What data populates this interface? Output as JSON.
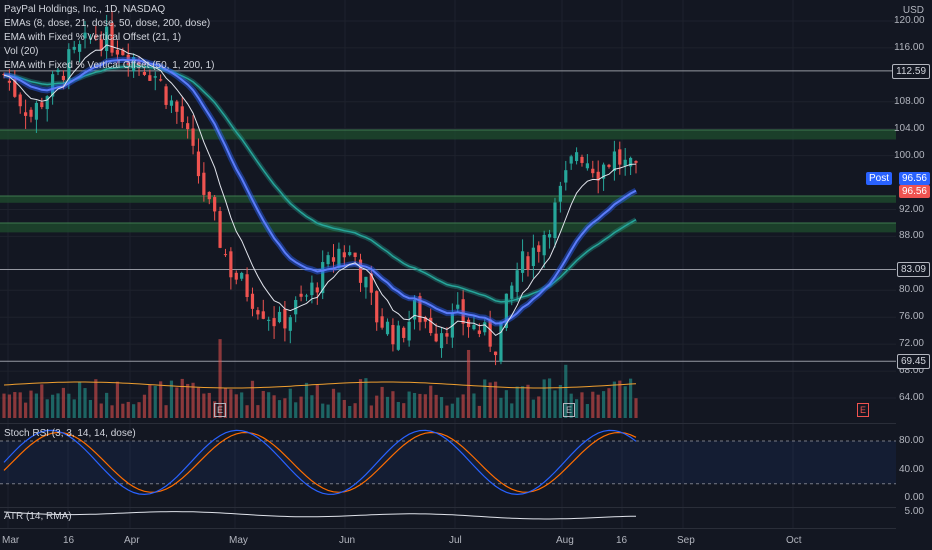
{
  "legends": {
    "title": "PayPal Holdings, Inc., 1D, NASDAQ",
    "emas": "EMAs (8, dose, 21, dose, 50, dose, 200, dose)",
    "ema_offset_21": "EMA with Fixed % Vertical Offset (21, 1)",
    "vol": "Vol (20)",
    "ema_offset_50": "EMA with Fixed % Vertical Offset (50, 1, 200, 1)",
    "stoch": "Stoch RSI (3, 3, 14, 14, dose)",
    "atr": "ATR (14, RMA)"
  },
  "price_axis": {
    "currency": "USD",
    "ticks": [
      "120.00",
      "116.00",
      "108.00",
      "104.00",
      "100.00",
      "92.00",
      "88.00",
      "80.00",
      "76.00",
      "72.00",
      "68.00",
      "64.00"
    ],
    "tick_values": [
      120,
      116,
      108,
      104,
      100,
      92,
      88,
      80,
      76,
      72,
      68,
      64
    ]
  },
  "stoch_axis": {
    "ticks": [
      "80.00",
      "40.00",
      "0.00"
    ],
    "tick_values": [
      80,
      40,
      0
    ]
  },
  "atr_axis": {
    "ticks": [
      "5.00"
    ]
  },
  "tags": {
    "r1": {
      "text": "112.59",
      "value": 112.59
    },
    "post_label": "Post",
    "post": {
      "text": "96.56",
      "value": 96.56
    },
    "last": {
      "text": "96.56",
      "value": 96.56
    },
    "r2": {
      "text": "83.09",
      "value": 83.09
    },
    "r3": {
      "text": "69.45",
      "value": 69.45
    }
  },
  "x_axis": [
    "Mar",
    "16",
    "Apr",
    "May",
    "Jun",
    "Jul",
    "Aug",
    "16",
    "Sep",
    "Oct"
  ],
  "zones": [
    {
      "from": 102.4,
      "to": 103.8
    },
    {
      "from": 93.0,
      "to": 94.0
    },
    {
      "from": 88.6,
      "to": 90.0
    }
  ],
  "earnings_badge": "E",
  "colors": {
    "up": "#26a69a",
    "down": "#ef5350",
    "ema_fast": "#2962ff",
    "ema_slow": "#26a69a",
    "stoch_k": "#2962ff",
    "stoch_d": "#ff6d00",
    "post_tag": "#2962ff",
    "last_tag": "#ef5350"
  }
}
